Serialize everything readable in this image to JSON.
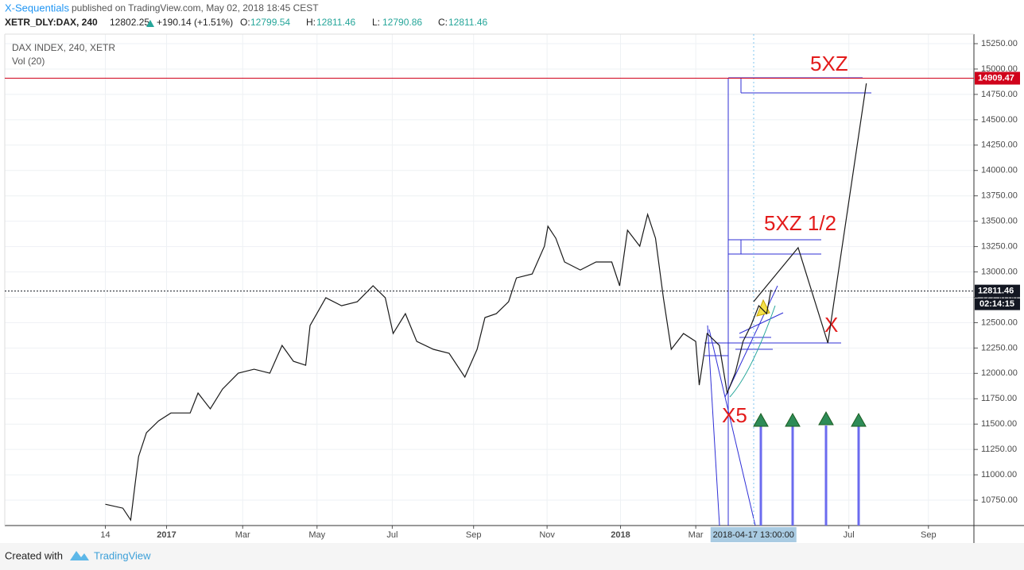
{
  "header": {
    "author": "X-Sequentials",
    "published": "published on TradingView.com, May 02, 2018 18:45 CEST",
    "symbol": "XETR_DLY:DAX, 240",
    "last": "12802.25",
    "change": "+190.14 (+1.51%)",
    "ohlc": [
      {
        "key": "O:",
        "value": "12799.54"
      },
      {
        "key": "H:",
        "value": "12811.46"
      },
      {
        "key": "L:",
        "value": "12790.86"
      },
      {
        "key": "C:",
        "value": "12811.46"
      }
    ]
  },
  "chart_data": {
    "type": "line",
    "title": "DAX INDEX, 240, XETR",
    "subtitle": "Vol (20)",
    "series": [
      {
        "color": "#1a1a1a",
        "x": [
          0,
          2,
          2.9,
          3.4,
          3.8,
          4.7,
          6.1,
          7.5,
          9.7,
          10.6,
          12,
          13.4,
          15.2,
          17,
          18.8,
          20.2,
          21.5,
          22.9,
          23.4,
          25.2,
          27,
          28.8,
          30.6,
          32,
          32.9,
          34.3,
          35.6,
          37.5,
          39.3,
          41.1,
          42.5,
          43.4,
          44.7,
          46.1,
          47,
          48.8,
          50.2,
          50.6,
          51.5,
          52.5,
          54.3,
          56.1,
          57.9,
          58.8,
          59.7,
          61.1,
          62,
          62.9,
          63.8,
          64.7,
          66.1,
          67.5,
          67.9,
          68.8,
          70.2,
          71.1,
          72,
          72.9,
          73.8,
          74.7,
          75.6,
          76.1
        ],
        "values": [
          10710,
          10671,
          10554,
          10906,
          11180,
          11415,
          11532,
          11610,
          11610,
          11806,
          11650,
          11845,
          12002,
          12041,
          12002,
          12276,
          12119,
          12080,
          12471,
          12745,
          12667,
          12706,
          12863,
          12745,
          12393,
          12589,
          12315,
          12237,
          12198,
          11963,
          12237,
          12550,
          12589,
          12706,
          12941,
          12980,
          13254,
          13450,
          13332,
          13098,
          13019,
          13098,
          13098,
          12863,
          13411,
          13254,
          13567,
          13332,
          12745,
          12237,
          12393,
          12315,
          11884,
          12393,
          12276,
          11806,
          12002,
          12315,
          12471,
          12667,
          12589,
          12824
        ]
      },
      {
        "color": "#1a1a1a",
        "x": [
          74.1,
          79.2,
          82.6,
          87
        ],
        "values": [
          12706,
          13239,
          12299,
          14859
        ]
      }
    ],
    "price_lines": [
      {
        "value": 14909.47,
        "color": "#d0021b",
        "style": "solid"
      },
      {
        "value": 12811.46,
        "color": "#131722",
        "style": "dotted"
      }
    ],
    "countdown": "02:14:15",
    "annotations": [
      "5XZ",
      "5XZ 1/2",
      "X",
      "X5"
    ],
    "xlim": [
      -11.5,
      99.3
    ],
    "xticks": [
      {
        "value": 0,
        "label": "14"
      },
      {
        "value": 7,
        "label": "2017"
      },
      {
        "value": 15.7,
        "label": "Mar"
      },
      {
        "value": 24.2,
        "label": "May"
      },
      {
        "value": 32.8,
        "label": "Jul"
      },
      {
        "value": 42.1,
        "label": "Sep"
      },
      {
        "value": 50.5,
        "label": "Nov"
      },
      {
        "value": 58.9,
        "label": "2018"
      },
      {
        "value": 67.5,
        "label": "Mar"
      },
      {
        "value": 85,
        "label": "Jul"
      },
      {
        "value": 94.1,
        "label": "Sep"
      }
    ],
    "crosshair": {
      "value": 74.1,
      "label": "2018-04-17 13:00:00"
    },
    "ylim": [
      10500,
      15344
    ],
    "yticks": [
      {
        "value": 10750,
        "label": "10750.00"
      },
      {
        "value": 11000,
        "label": "11000.00"
      },
      {
        "value": 11250,
        "label": "11250.00"
      },
      {
        "value": 11500,
        "label": "11500.00"
      },
      {
        "value": 11750,
        "label": "11750.00"
      },
      {
        "value": 12000,
        "label": "12000.00"
      },
      {
        "value": 12250,
        "label": "12250.00"
      },
      {
        "value": 12500,
        "label": "12500.00"
      },
      {
        "value": 12750,
        "label": "12750.00"
      },
      {
        "value": 13000,
        "label": "13000.00"
      },
      {
        "value": 13250,
        "label": "13250.00"
      },
      {
        "value": 13500,
        "label": "13500.00"
      },
      {
        "value": 13750,
        "label": "13750.00"
      },
      {
        "value": 14000,
        "label": "14000.00"
      },
      {
        "value": 14250,
        "label": "14250.00"
      },
      {
        "value": 14500,
        "label": "14500.00"
      },
      {
        "value": 14750,
        "label": "14750.00"
      },
      {
        "value": 15000,
        "label": "15000.00"
      },
      {
        "value": 15250,
        "label": "15250.00"
      }
    ],
    "grid": true
  },
  "footer": {
    "created": "Created with",
    "brand": "TradingView"
  }
}
